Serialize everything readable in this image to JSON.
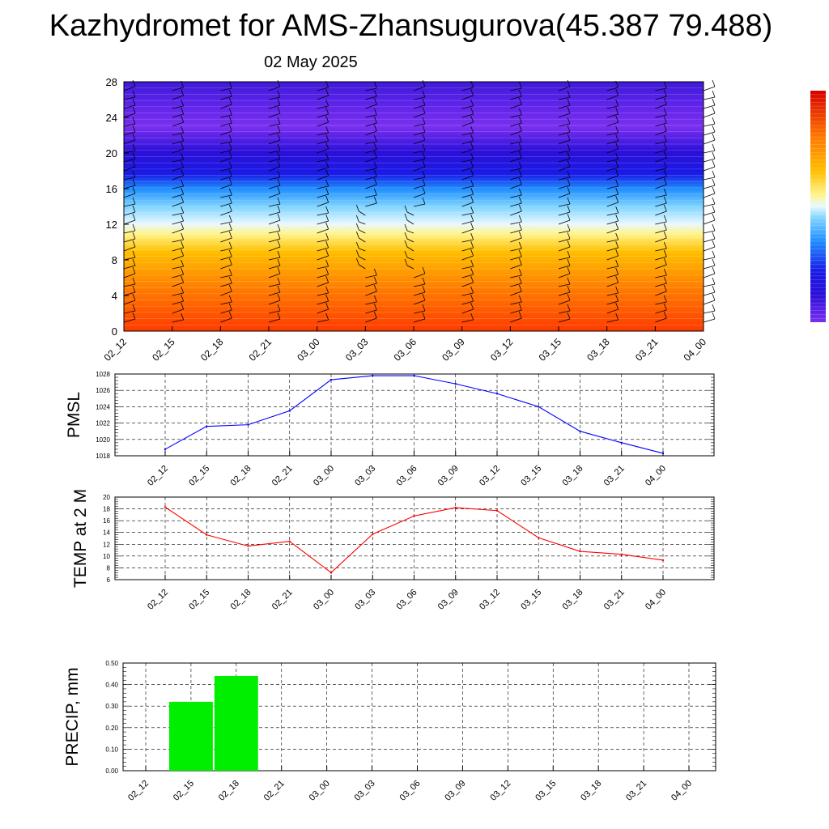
{
  "title": "Kazhydromet for AMS-Zhansugurova(45.387 79.488)",
  "date": "02 May 2025",
  "colors": {
    "pmsl_line": "#0000ff",
    "temp_line": "#ff0000",
    "precip_bar": "#00ee00",
    "barb": "#000000",
    "grid": "#000000"
  },
  "chart_data": [
    {
      "type": "heatmap",
      "name": "profile",
      "x": [
        "02_12",
        "02_15",
        "02_18",
        "02_21",
        "03_00",
        "03_03",
        "03_06",
        "03_09",
        "03_12",
        "03_15",
        "03_18",
        "03_21",
        "04_00"
      ],
      "ylim": [
        0,
        28
      ],
      "yticks": [
        0,
        4,
        8,
        12,
        16,
        20,
        24,
        28
      ],
      "colorbar": "orange-red at bottom through yellow, white, cyan, blue to violet at top",
      "wind_barbs": true
    },
    {
      "type": "line",
      "name": "pmsl",
      "ylabel": "PMSL",
      "x": [
        "02_12",
        "02_15",
        "02_18",
        "02_21",
        "03_00",
        "03_03",
        "03_06",
        "03_09",
        "03_12",
        "03_15",
        "03_18",
        "03_21",
        "04_00"
      ],
      "values": [
        1018.8,
        1021.6,
        1021.8,
        1023.5,
        1027.3,
        1027.8,
        1027.8,
        1026.8,
        1025.6,
        1024.0,
        1021.0,
        1019.6,
        1018.3
      ],
      "ylim": [
        1018,
        1028
      ],
      "yticks": [
        1018,
        1020,
        1022,
        1024,
        1026,
        1028
      ],
      "grid": true
    },
    {
      "type": "line",
      "name": "temp",
      "ylabel": "TEMP at 2 M",
      "x": [
        "02_12",
        "02_15",
        "02_18",
        "02_21",
        "03_00",
        "03_03",
        "03_06",
        "03_09",
        "03_12",
        "03_15",
        "03_18",
        "03_21",
        "04_00"
      ],
      "values": [
        18.3,
        13.6,
        11.7,
        12.5,
        7.2,
        13.7,
        16.8,
        18.2,
        17.7,
        13.1,
        10.8,
        10.3,
        9.3
      ],
      "ylim": [
        6,
        20
      ],
      "yticks": [
        6,
        8,
        10,
        12,
        14,
        16,
        18,
        20
      ],
      "grid": true
    },
    {
      "type": "bar",
      "name": "precip",
      "ylabel": "PRECIP, mm",
      "x": [
        "02_12",
        "02_15",
        "02_18",
        "02_21",
        "03_00",
        "03_03",
        "03_06",
        "03_09",
        "03_12",
        "03_15",
        "03_18",
        "03_21",
        "04_00"
      ],
      "values": [
        0,
        0.32,
        0.44,
        0,
        0,
        0,
        0,
        0,
        0,
        0,
        0,
        0,
        0
      ],
      "ylim": [
        0,
        0.5
      ],
      "yticks": [
        "0.00",
        "0.10",
        "0.20",
        "0.30",
        "0.40",
        "0.50"
      ],
      "grid": true
    }
  ]
}
